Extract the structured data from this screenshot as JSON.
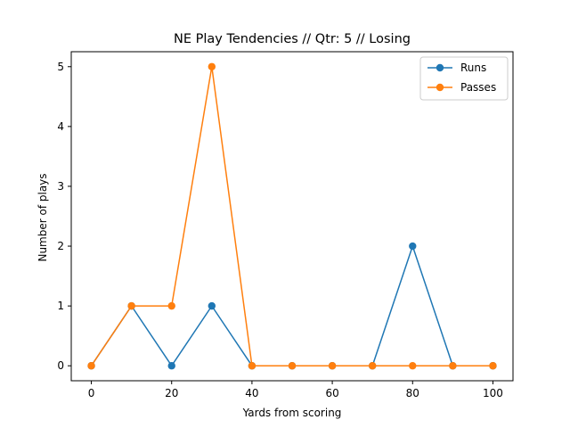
{
  "chart_data": {
    "type": "line",
    "title": "NE Play Tendencies // Qtr: 5 // Losing",
    "xlabel": "Yards from scoring",
    "ylabel": "Number of plays",
    "x": [
      0,
      10,
      20,
      30,
      40,
      50,
      60,
      70,
      80,
      90,
      100
    ],
    "xlim": [
      -5,
      105
    ],
    "ylim": [
      -0.25,
      5.25
    ],
    "xticks": [
      0,
      20,
      40,
      60,
      80,
      100
    ],
    "yticks": [
      0,
      1,
      2,
      3,
      4,
      5
    ],
    "grid": false,
    "legend_position": "top-right",
    "series": [
      {
        "name": "Runs",
        "color": "#1f77b4",
        "marker": "circle",
        "values": [
          0,
          1,
          0,
          1,
          0,
          0,
          0,
          0,
          2,
          0,
          0
        ]
      },
      {
        "name": "Passes",
        "color": "#ff7f0e",
        "marker": "circle",
        "values": [
          0,
          1,
          1,
          5,
          0,
          0,
          0,
          0,
          0,
          0,
          0
        ]
      }
    ]
  }
}
